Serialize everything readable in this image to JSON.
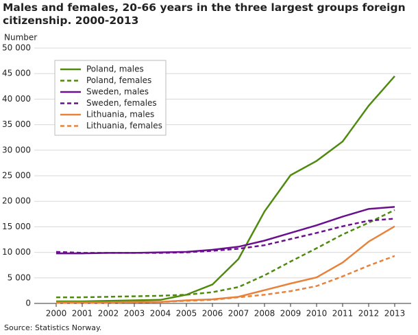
{
  "chart_data": {
    "type": "line",
    "title": "Males and females, 20-66 years in the three largest groups foreign citizenship. 2000-2013",
    "y_label": "Number",
    "source": "Source: Statistics Norway.",
    "categories": [
      "2000",
      "2001",
      "2002",
      "2003",
      "2004",
      "2005",
      "2006",
      "2007",
      "2008",
      "2009",
      "2010",
      "2011",
      "2012",
      "2013"
    ],
    "series": [
      {
        "name": "Poland, males",
        "color": "#4e8a0e",
        "dash": false,
        "values": [
          400,
          400,
          500,
          600,
          700,
          1700,
          3700,
          8700,
          18000,
          25100,
          27900,
          31700,
          38700,
          44500
        ]
      },
      {
        "name": "Poland, females",
        "color": "#4e8a0e",
        "dash": true,
        "values": [
          1200,
          1200,
          1300,
          1400,
          1500,
          1700,
          2200,
          3200,
          5500,
          8200,
          10800,
          13500,
          15800,
          18300
        ]
      },
      {
        "name": "Sweden, males",
        "color": "#6a0f8e",
        "dash": false,
        "values": [
          9800,
          9800,
          9900,
          9900,
          10000,
          10100,
          10500,
          11100,
          12300,
          13800,
          15300,
          17000,
          18500,
          18900
        ]
      },
      {
        "name": "Sweden, females",
        "color": "#6a0f8e",
        "dash": true,
        "values": [
          10100,
          9900,
          9900,
          9900,
          9900,
          10000,
          10300,
          10700,
          11400,
          12600,
          13800,
          15100,
          16200,
          16600
        ]
      },
      {
        "name": "Lithuania, males",
        "color": "#e8823a",
        "dash": false,
        "values": [
          200,
          200,
          200,
          300,
          300,
          600,
          800,
          1300,
          2600,
          3900,
          5100,
          8000,
          12100,
          15100
        ]
      },
      {
        "name": "Lithuania, females",
        "color": "#e8823a",
        "dash": true,
        "values": [
          100,
          100,
          100,
          200,
          300,
          500,
          700,
          1200,
          1700,
          2400,
          3400,
          5300,
          7400,
          9300
        ]
      }
    ],
    "ylim": [
      0,
      50000
    ],
    "yticks": [
      0,
      {
        "value": 5000,
        "label": "5 000"
      },
      {
        "value": 10000,
        "label": "10 000"
      },
      {
        "value": 15000,
        "label": "15 000"
      },
      {
        "value": 20000,
        "label": "20 000"
      },
      {
        "value": 25000,
        "label": "25 000"
      },
      {
        "value": 30000,
        "label": "30 000"
      },
      {
        "value": 35000,
        "label": "35 000"
      },
      {
        "value": 40000,
        "label": "40 000"
      },
      {
        "value": 45000,
        "label": "45 000"
      },
      {
        "value": 50000,
        "label": "50 000"
      }
    ],
    "grid": true,
    "legend": "top-left"
  }
}
